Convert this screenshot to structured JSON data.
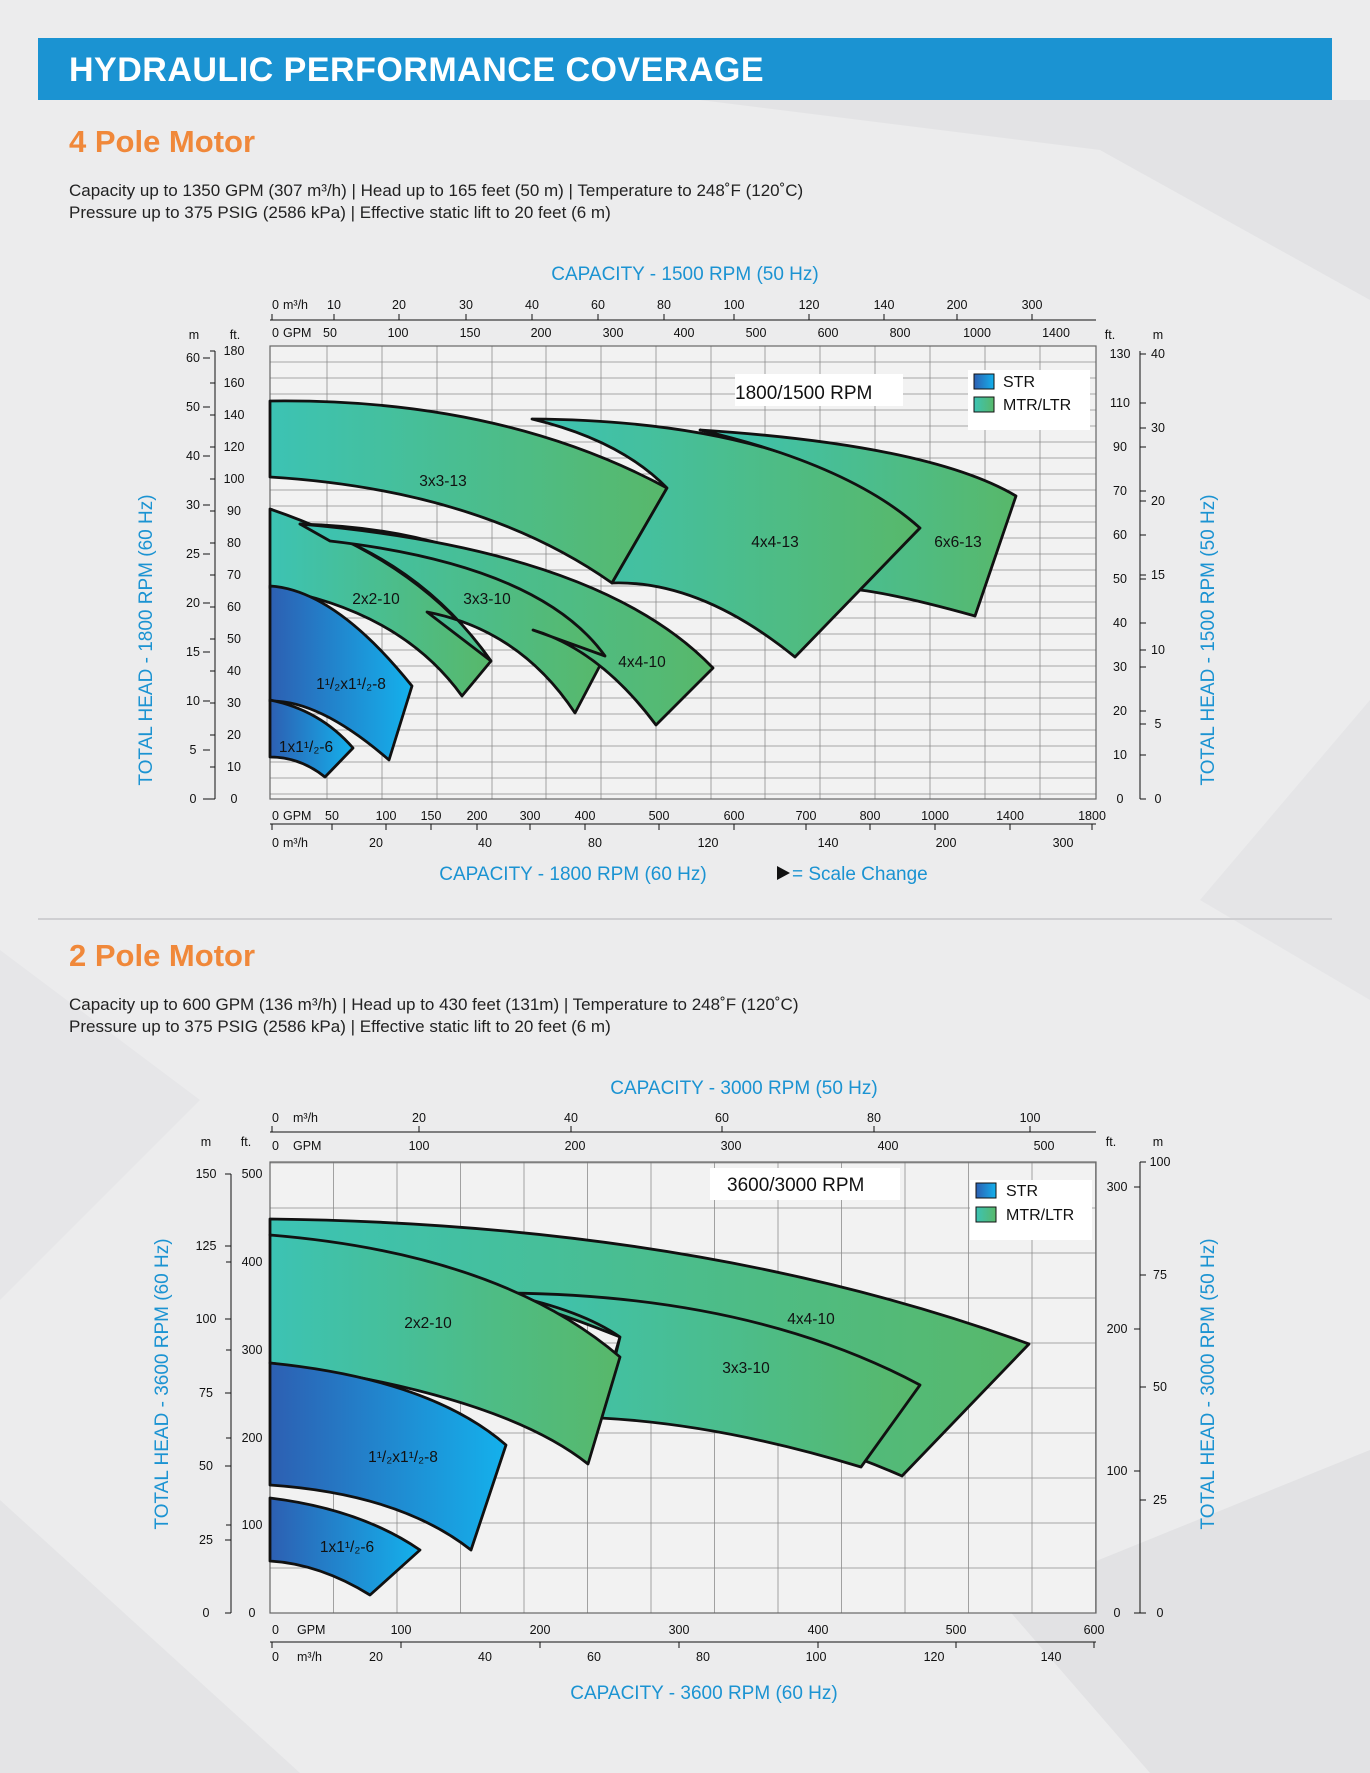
{
  "header": {
    "title": "HYDRAULIC PERFORMANCE COVERAGE"
  },
  "colors": {
    "accent": "#1b93d2",
    "section": "#f0883a",
    "str_start": "#2e63b3",
    "str_end": "#17aee9",
    "mtr_start": "#3bc2b5",
    "mtr_end": "#56b96c"
  },
  "sections": [
    {
      "title": "4 Pole Motor",
      "spec_line1": "Capacity up to 1350 GPM (307 m³/h)  |  Head up to 165 feet (50 m)  |  Temperature to 248˚F (120˚C)",
      "spec_line2": "Pressure up to 375 PSIG (2586 kPa)  |  Effective static lift to 20 feet (6 m)"
    },
    {
      "title": "2 Pole Motor",
      "spec_line1": "Capacity up to 600 GPM (136 m³/h)  |  Head up to 430 feet (131m)  |  Temperature to 248˚F (120˚C)",
      "spec_line2": "Pressure up to 375 PSIG (2586 kPa)  |  Effective static lift to 20 feet (6 m)"
    }
  ],
  "chart_data": [
    {
      "type": "area",
      "title": "1800/1500 RPM",
      "top_axis_title": "CAPACITY - 1500 RPM (50 Hz)",
      "bottom_axis_title": "CAPACITY - 1800 RPM (60 Hz)",
      "left_axis_title": "TOTAL HEAD - 1800 RPM (60 Hz)",
      "right_axis_title": "TOTAL HEAD - 1500 RPM (50 Hz)",
      "scale_change_note": "= Scale Change",
      "legend": [
        {
          "name": "STR",
          "kind": "str"
        },
        {
          "name": "MTR/LTR",
          "kind": "mtr"
        }
      ],
      "left_axis_ft": {
        "unit": "ft.",
        "ticks": [
          "0",
          "10",
          "20",
          "30",
          "40",
          "50",
          "60",
          "70",
          "80",
          "90",
          "100",
          "120",
          "140",
          "160",
          "180"
        ]
      },
      "left_axis_m": {
        "unit": "m",
        "ticks": [
          "0",
          "5",
          "10",
          "15",
          "20",
          "25",
          "30",
          "40",
          "50",
          "60"
        ]
      },
      "right_axis_ft": {
        "unit": "ft.",
        "ticks": [
          "0",
          "10",
          "20",
          "30",
          "40",
          "50",
          "60",
          "70",
          "90",
          "110",
          "130"
        ]
      },
      "right_axis_m": {
        "unit": "m",
        "ticks": [
          "0",
          "5",
          "10",
          "15",
          "20",
          "30",
          "40"
        ]
      },
      "bottom_gpm": {
        "unit": "GPM",
        "ticks": [
          "0",
          "50",
          "100",
          "150",
          "200",
          "300",
          "400",
          "500",
          "600",
          "700",
          "800",
          "1000",
          "1400",
          "1800"
        ]
      },
      "bottom_m3h": {
        "unit": "m³/h",
        "ticks": [
          "0",
          "20",
          "40",
          "80",
          "120",
          "140",
          "200",
          "300"
        ]
      },
      "top_m3h": {
        "unit": "m³/h",
        "ticks": [
          "0",
          "10",
          "20",
          "30",
          "40",
          "60",
          "80",
          "100",
          "120",
          "140",
          "200",
          "300"
        ]
      },
      "top_gpm": {
        "unit": "GPM",
        "ticks": [
          "0",
          "50",
          "100",
          "150",
          "200",
          "300",
          "400",
          "500",
          "600",
          "800",
          "1000",
          "1400"
        ]
      },
      "pumps": [
        {
          "name": "3x3-13",
          "type": "MTR/LTR",
          "head_ft": [
            78,
            145
          ]
        },
        {
          "name": "4x4-13",
          "type": "MTR/LTR",
          "head_ft": [
            62,
            120
          ]
        },
        {
          "name": "6x6-13",
          "type": "MTR/LTR",
          "head_ft": [
            82,
            116
          ]
        },
        {
          "name": "2x2-10",
          "type": "MTR/LTR",
          "head_ft": [
            32,
            90
          ]
        },
        {
          "name": "3x3-10",
          "type": "MTR/LTR",
          "head_ft": [
            28,
            85
          ]
        },
        {
          "name": "4x4-10",
          "type": "MTR/LTR",
          "head_ft": [
            24,
            85
          ]
        },
        {
          "name": "1¹/₂x1¹/₂-8",
          "type": "STR",
          "head_ft": [
            14,
            68
          ]
        },
        {
          "name": "1x1¹/₂-6",
          "type": "STR",
          "head_ft": [
            7,
            30
          ]
        }
      ]
    },
    {
      "type": "area",
      "title": "3600/3000 RPM",
      "top_axis_title": "CAPACITY - 3000 RPM (50 Hz)",
      "bottom_axis_title": "CAPACITY - 3600 RPM (60 Hz)",
      "left_axis_title": "TOTAL HEAD - 3600 RPM (60 Hz)",
      "right_axis_title": "TOTAL HEAD - 3000 RPM (50 Hz)",
      "legend": [
        {
          "name": "STR",
          "kind": "str"
        },
        {
          "name": "MTR/LTR",
          "kind": "mtr"
        }
      ],
      "left_axis_ft": {
        "unit": "ft.",
        "ticks": [
          "0",
          "100",
          "200",
          "300",
          "400",
          "500"
        ]
      },
      "left_axis_m": {
        "unit": "m",
        "ticks": [
          "0",
          "25",
          "50",
          "75",
          "100",
          "125",
          "150"
        ]
      },
      "right_axis_ft": {
        "unit": "ft.",
        "ticks": [
          "0",
          "100",
          "200",
          "300"
        ]
      },
      "right_axis_m": {
        "unit": "m",
        "ticks": [
          "0",
          "25",
          "50",
          "75",
          "100"
        ]
      },
      "bottom_gpm": {
        "unit": "GPM",
        "ticks": [
          "0",
          "100",
          "200",
          "300",
          "400",
          "500",
          "600"
        ]
      },
      "bottom_m3h": {
        "unit": "m³/h",
        "ticks": [
          "0",
          "20",
          "40",
          "60",
          "80",
          "100",
          "120",
          "140"
        ]
      },
      "top_m3h": {
        "unit": "m³/h",
        "ticks": [
          "0",
          "20",
          "40",
          "60",
          "80",
          "100"
        ]
      },
      "top_gpm": {
        "unit": "GPM",
        "ticks": [
          "0",
          "100",
          "200",
          "300",
          "400",
          "500"
        ]
      },
      "pumps": [
        {
          "name": "2x2-10",
          "type": "MTR/LTR",
          "gpm": [
            0,
            255
          ],
          "head_ft": [
            170,
            426
          ]
        },
        {
          "name": "3x3-10",
          "type": "MTR/LTR",
          "gpm": [
            170,
            470
          ],
          "head_ft": [
            160,
            370
          ]
        },
        {
          "name": "4x4-10",
          "type": "MTR/LTR",
          "gpm": [
            0,
            555
          ],
          "head_ft": [
            155,
            445
          ]
        },
        {
          "name": "1¹/₂x1¹/₂-8",
          "type": "STR",
          "gpm": [
            0,
            170
          ],
          "head_ft": [
            70,
            285
          ]
        },
        {
          "name": "1x1¹/₂-6",
          "type": "STR",
          "gpm": [
            0,
            108
          ],
          "head_ft": [
            18,
            130
          ]
        }
      ]
    }
  ]
}
